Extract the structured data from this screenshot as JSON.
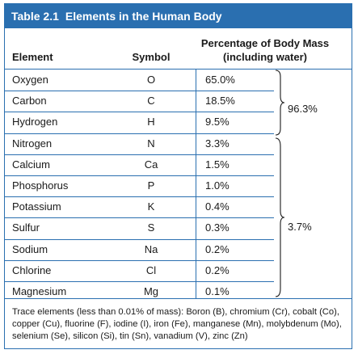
{
  "table": {
    "title_number": "Table 2.1",
    "title_text": "Elements in the Human Body",
    "headers": {
      "element": "Element",
      "symbol": "Symbol",
      "percentage_line1": "Percentage of Body Mass",
      "percentage_line2": "(including water)"
    },
    "rows": [
      {
        "element": "Oxygen",
        "symbol": "O",
        "percentage": "65.0%"
      },
      {
        "element": "Carbon",
        "symbol": "C",
        "percentage": "18.5%"
      },
      {
        "element": "Hydrogen",
        "symbol": "H",
        "percentage": "9.5%"
      },
      {
        "element": "Nitrogen",
        "symbol": "N",
        "percentage": "3.3%"
      },
      {
        "element": "Calcium",
        "symbol": "Ca",
        "percentage": "1.5%"
      },
      {
        "element": "Phosphorus",
        "symbol": "P",
        "percentage": "1.0%"
      },
      {
        "element": "Potassium",
        "symbol": "K",
        "percentage": "0.4%"
      },
      {
        "element": "Sulfur",
        "symbol": "S",
        "percentage": "0.3%"
      },
      {
        "element": "Sodium",
        "symbol": "Na",
        "percentage": "0.2%"
      },
      {
        "element": "Chlorine",
        "symbol": "Cl",
        "percentage": "0.2%"
      },
      {
        "element": "Magnesium",
        "symbol": "Mg",
        "percentage": "0.1%"
      }
    ],
    "groups": [
      {
        "label": "96.3%"
      },
      {
        "label": "3.7%"
      }
    ],
    "footnote": "Trace elements (less than 0.01% of mass): Boron (B), chromium (Cr), cobalt (Co), copper (Cu), fluorine (F), iodine (I), iron (Fe), manganese (Mn), molybdenum (Mo), selenium (Se), silicon (Si), tin (Sn), vanadium (V), zinc (Zn)",
    "colors": {
      "accent": "#2a6fb0",
      "title_text": "#ffffff"
    }
  }
}
